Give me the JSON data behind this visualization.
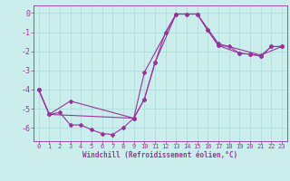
{
  "xlabel": "Windchill (Refroidissement éolien,°C)",
  "bg_color": "#cbeeed",
  "line_color": "#993399",
  "grid_color": "#aadddd",
  "xlim": [
    -0.5,
    23.5
  ],
  "ylim": [
    -6.7,
    0.4
  ],
  "xticks": [
    0,
    1,
    2,
    3,
    4,
    5,
    6,
    7,
    8,
    9,
    10,
    11,
    12,
    13,
    14,
    15,
    16,
    17,
    18,
    19,
    20,
    21,
    22,
    23
  ],
  "yticks": [
    0,
    -1,
    -2,
    -3,
    -4,
    -5,
    -6
  ],
  "series1": [
    [
      0,
      -4.0
    ],
    [
      1,
      -5.3
    ],
    [
      2,
      -5.2
    ],
    [
      3,
      -5.85
    ],
    [
      4,
      -5.85
    ],
    [
      5,
      -6.1
    ],
    [
      6,
      -6.3
    ],
    [
      7,
      -6.35
    ],
    [
      8,
      -6.0
    ],
    [
      9,
      -5.5
    ],
    [
      10,
      -4.5
    ],
    [
      11,
      -2.6
    ],
    [
      12,
      -1.0
    ],
    [
      13,
      -0.05
    ],
    [
      14,
      -0.05
    ],
    [
      15,
      -0.05
    ],
    [
      16,
      -0.9
    ],
    [
      17,
      -1.7
    ],
    [
      18,
      -1.75
    ],
    [
      19,
      -2.1
    ],
    [
      20,
      -2.15
    ],
    [
      21,
      -2.25
    ],
    [
      22,
      -1.75
    ],
    [
      23,
      -1.75
    ]
  ],
  "series2": [
    [
      0,
      -4.0
    ],
    [
      1,
      -5.3
    ],
    [
      3,
      -4.6
    ],
    [
      9,
      -5.5
    ],
    [
      10,
      -4.5
    ],
    [
      11,
      -2.6
    ],
    [
      13,
      -0.05
    ],
    [
      14,
      -0.05
    ],
    [
      15,
      -0.05
    ],
    [
      16,
      -0.9
    ],
    [
      17,
      -1.7
    ],
    [
      19,
      -2.1
    ],
    [
      20,
      -2.15
    ],
    [
      21,
      -2.25
    ],
    [
      22,
      -1.75
    ],
    [
      23,
      -1.75
    ]
  ],
  "series3": [
    [
      0,
      -4.0
    ],
    [
      1,
      -5.3
    ],
    [
      9,
      -5.5
    ],
    [
      10,
      -3.1
    ],
    [
      13,
      -0.05
    ],
    [
      15,
      -0.05
    ],
    [
      17,
      -1.6
    ],
    [
      21,
      -2.2
    ],
    [
      23,
      -1.75
    ]
  ]
}
